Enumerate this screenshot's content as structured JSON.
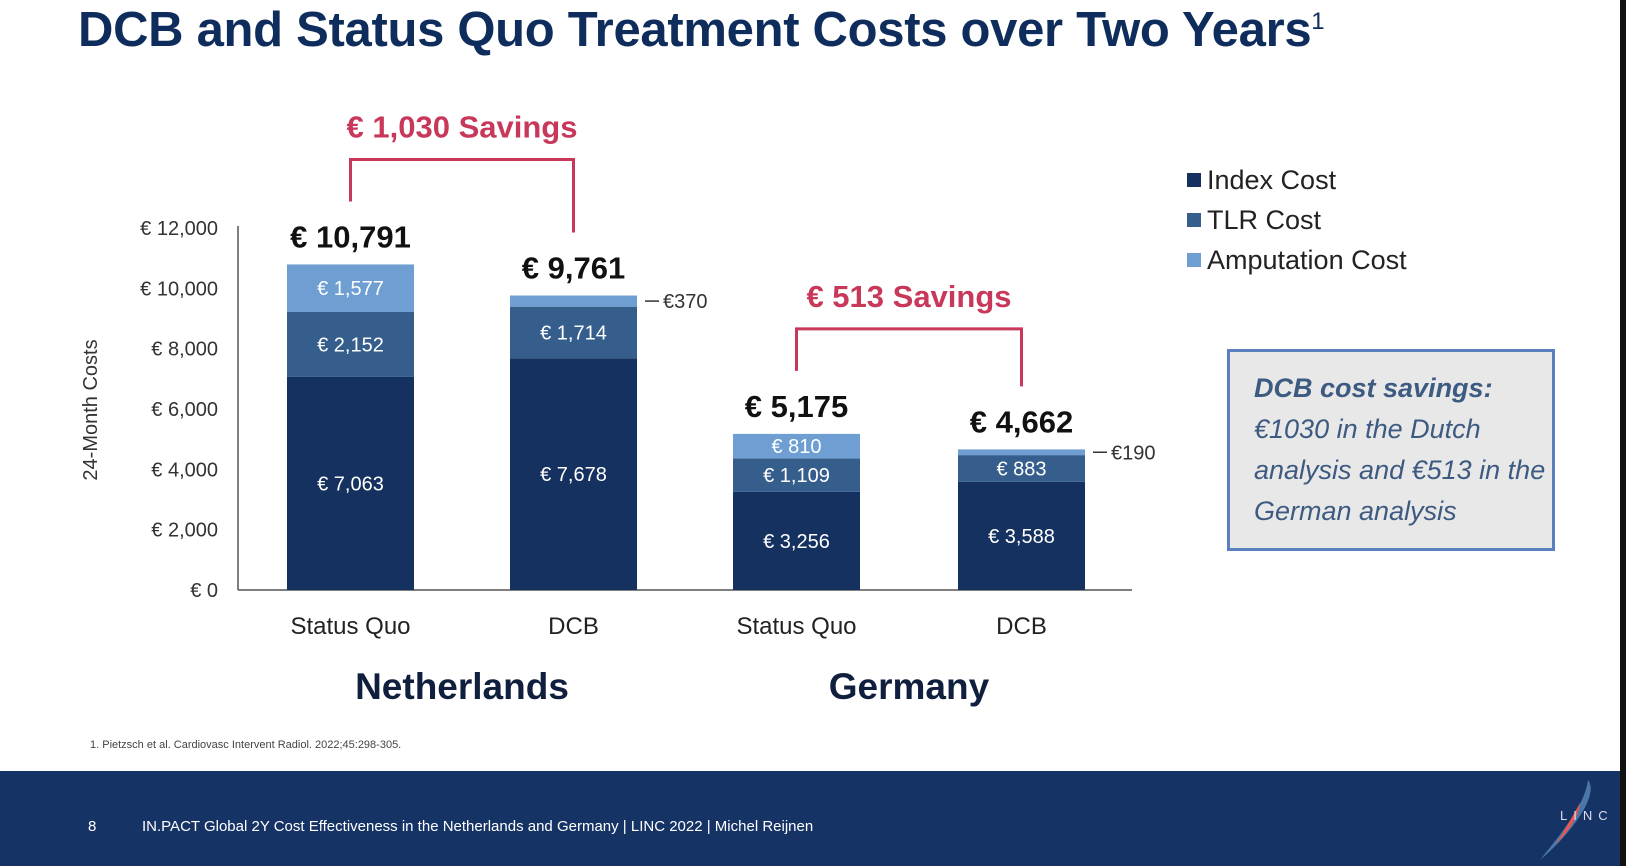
{
  "title": "DCB and Status Quo Treatment Costs over Two Years",
  "title_superscript": "1",
  "callout": {
    "heading": "DCB cost savings:",
    "body": "€1030 in the Dutch analysis and €513 in the German analysis"
  },
  "footnote": "1. Pietzsch et al. Cardiovasc Intervent Radiol. 2022;45:298-305.",
  "footer": {
    "page_number": "8",
    "text": "IN.PACT Global 2Y Cost Effectiveness in the Netherlands and Germany  |  LINC 2022  |  Michel Reijnen",
    "logo_text": "LINC"
  },
  "colors": {
    "index": "#14315f",
    "tlr": "#355e8c",
    "amputation": "#6f9fd2",
    "savings": "#c8385a",
    "title": "#0f2d5c"
  },
  "chart_data": {
    "type": "bar",
    "stacked": true,
    "ylabel": "24-Month Costs",
    "ylim": [
      0,
      12000
    ],
    "yticks": [
      "€ 0",
      "€ 2,000",
      "€ 4,000",
      "€ 6,000",
      "€ 8,000",
      "€ 10,000",
      "€ 12,000"
    ],
    "ytick_values": [
      0,
      2000,
      4000,
      6000,
      8000,
      10000,
      12000
    ],
    "grid": false,
    "legend_position": "top-right",
    "categories": [
      "Status Quo",
      "DCB",
      "Status Quo",
      "DCB"
    ],
    "groups": [
      {
        "name": "Netherlands",
        "categories": [
          0,
          1
        ]
      },
      {
        "name": "Germany",
        "categories": [
          2,
          3
        ]
      }
    ],
    "series": [
      {
        "name": "Index Cost",
        "values": [
          7063,
          7678,
          3256,
          3588
        ],
        "labels": [
          "€ 7,063",
          "€ 7,678",
          "€ 3,256",
          "€ 3,588"
        ]
      },
      {
        "name": "TLR Cost",
        "values": [
          2152,
          1714,
          1109,
          883
        ],
        "labels": [
          "€ 2,152",
          "€ 1,714",
          "€ 1,109",
          "€ 883"
        ]
      },
      {
        "name": "Amputation Cost",
        "values": [
          1577,
          370,
          810,
          190
        ],
        "labels": [
          "€ 1,577",
          "€370",
          "€ 810",
          "€190"
        ]
      }
    ],
    "totals": [
      "€ 10,791",
      "€ 9,761",
      "€ 5,175",
      "€ 4,662"
    ],
    "savings": [
      {
        "label": "€ 1,030 Savings",
        "from": 0,
        "to": 1
      },
      {
        "label": "€ 513 Savings",
        "from": 2,
        "to": 3
      }
    ]
  }
}
